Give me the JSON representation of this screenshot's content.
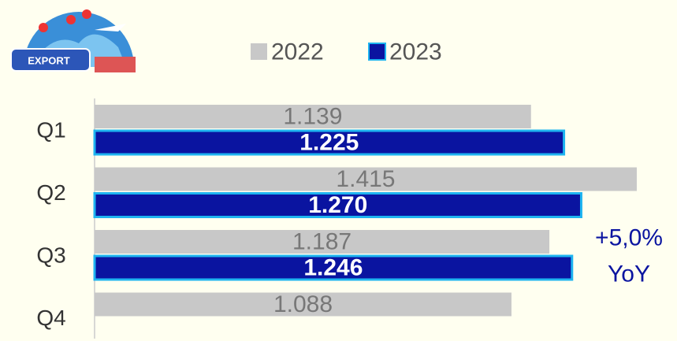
{
  "chart_data": {
    "type": "bar",
    "orientation": "horizontal",
    "icon_label": "EXPORT",
    "categories": [
      "Q1",
      "Q2",
      "Q3",
      "Q4"
    ],
    "series": [
      {
        "name": "2022",
        "color": "#c8c8c8",
        "values": [
          1139,
          1415,
          1187,
          1088
        ],
        "value_labels": [
          "1.139",
          "1.415",
          "1.187",
          "1.088"
        ]
      },
      {
        "name": "2023",
        "color": "#0a14a0",
        "values": [
          1225,
          1270,
          1246,
          null
        ],
        "value_labels": [
          "1.225",
          "1.270",
          "1.246",
          null
        ]
      }
    ],
    "xlim": [
      0,
      1520
    ],
    "annotation": [
      "+5,0%",
      "YoY"
    ]
  }
}
